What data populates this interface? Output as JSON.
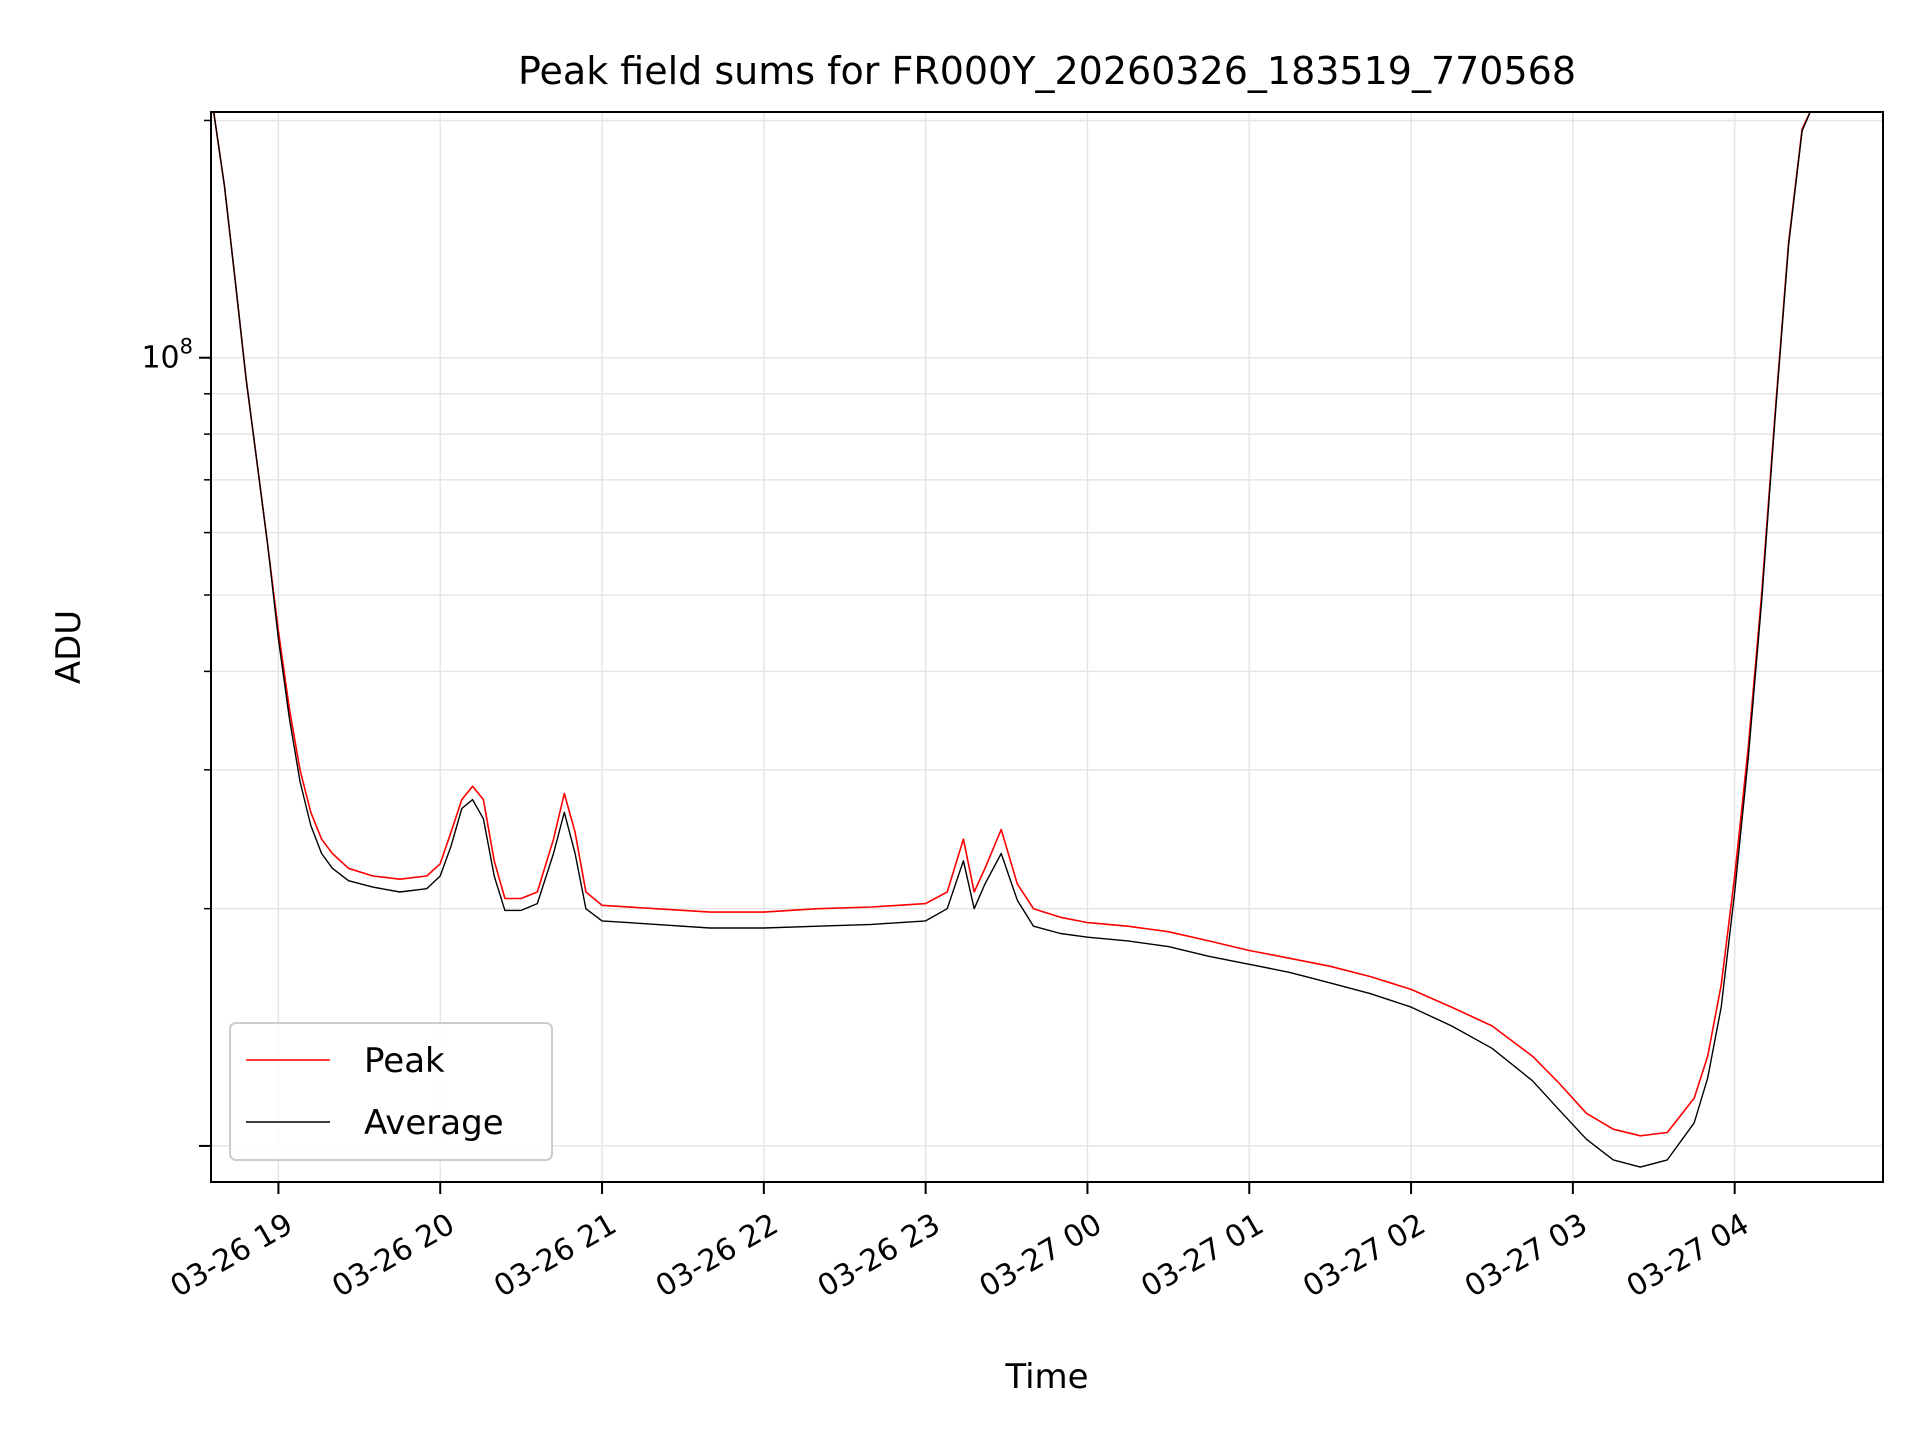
{
  "chart_data": {
    "type": "line",
    "title": "Peak field sums for FR000Y_20260326_183519_770568",
    "xlabel": "Time",
    "ylabel": "ADU",
    "yscale": "log",
    "ylim": [
      9000000,
      205000000
    ],
    "xlim_minutes_from_axis_start": [
      0,
      620
    ],
    "grid": true,
    "legend_position": "lower-left",
    "x_ticks": [
      "03-26 19",
      "03-26 20",
      "03-26 21",
      "03-26 22",
      "03-26 23",
      "03-27 00",
      "03-27 01",
      "03-27 02",
      "03-27 03",
      "03-27 04"
    ],
    "y_ticks": [
      {
        "base": "10",
        "exp": "8",
        "value": 100000000
      }
    ],
    "series": [
      {
        "name": "Peak",
        "color": "#ff0000",
        "points": [
          [
            "18:36",
            205000000
          ],
          [
            "18:40",
            165000000
          ],
          [
            "18:44",
            125000000
          ],
          [
            "18:48",
            94000000
          ],
          [
            "18:52",
            74000000
          ],
          [
            "18:56",
            58000000
          ],
          [
            "19:00",
            45000000
          ],
          [
            "19:04",
            36000000
          ],
          [
            "19:08",
            30000000
          ],
          [
            "19:12",
            26500000
          ],
          [
            "19:16",
            24500000
          ],
          [
            "19:20",
            23500000
          ],
          [
            "19:26",
            22500000
          ],
          [
            "19:35",
            22000000
          ],
          [
            "19:45",
            21800000
          ],
          [
            "19:55",
            22000000
          ],
          [
            "20:00",
            22800000
          ],
          [
            "20:04",
            25000000
          ],
          [
            "20:08",
            27500000
          ],
          [
            "20:12",
            28600000
          ],
          [
            "20:16",
            27500000
          ],
          [
            "20:20",
            23000000
          ],
          [
            "20:24",
            20600000
          ],
          [
            "20:30",
            20600000
          ],
          [
            "20:36",
            21000000
          ],
          [
            "20:42",
            24500000
          ],
          [
            "20:46",
            28000000
          ],
          [
            "20:50",
            25000000
          ],
          [
            "20:54",
            21000000
          ],
          [
            "21:00",
            20200000
          ],
          [
            "21:20",
            20000000
          ],
          [
            "21:40",
            19800000
          ],
          [
            "22:00",
            19800000
          ],
          [
            "22:20",
            20000000
          ],
          [
            "22:40",
            20100000
          ],
          [
            "23:00",
            20300000
          ],
          [
            "23:08",
            21000000
          ],
          [
            "23:14",
            24500000
          ],
          [
            "23:18",
            21000000
          ],
          [
            "23:22",
            22500000
          ],
          [
            "23:28",
            25200000
          ],
          [
            "23:34",
            21500000
          ],
          [
            "23:40",
            20000000
          ],
          [
            "23:50",
            19500000
          ],
          [
            "00:00",
            19200000
          ],
          [
            "00:15",
            19000000
          ],
          [
            "00:30",
            18700000
          ],
          [
            "00:45",
            18200000
          ],
          [
            "01:00",
            17700000
          ],
          [
            "01:15",
            17300000
          ],
          [
            "01:30",
            16900000
          ],
          [
            "01:45",
            16400000
          ],
          [
            "02:00",
            15800000
          ],
          [
            "02:15",
            15000000
          ],
          [
            "02:30",
            14200000
          ],
          [
            "02:45",
            13000000
          ],
          [
            "02:55",
            12000000
          ],
          [
            "03:05",
            11000000
          ],
          [
            "03:15",
            10500000
          ],
          [
            "03:25",
            10300000
          ],
          [
            "03:35",
            10400000
          ],
          [
            "03:45",
            11500000
          ],
          [
            "03:50",
            13000000
          ],
          [
            "03:55",
            16000000
          ],
          [
            "04:00",
            22000000
          ],
          [
            "04:05",
            32000000
          ],
          [
            "04:10",
            50000000
          ],
          [
            "04:15",
            85000000
          ],
          [
            "04:20",
            140000000
          ],
          [
            "04:25",
            195000000
          ],
          [
            "04:28",
            205000000
          ],
          [
            "04:43",
            205000000
          ]
        ]
      },
      {
        "name": "Average",
        "color": "#000000",
        "points": [
          [
            "18:36",
            205000000
          ],
          [
            "18:40",
            165000000
          ],
          [
            "18:44",
            125000000
          ],
          [
            "18:48",
            94000000
          ],
          [
            "18:52",
            74000000
          ],
          [
            "18:56",
            58000000
          ],
          [
            "19:00",
            44000000
          ],
          [
            "19:04",
            35000000
          ],
          [
            "19:08",
            29000000
          ],
          [
            "19:12",
            25500000
          ],
          [
            "19:16",
            23500000
          ],
          [
            "19:20",
            22500000
          ],
          [
            "19:26",
            21700000
          ],
          [
            "19:35",
            21300000
          ],
          [
            "19:45",
            21000000
          ],
          [
            "19:55",
            21200000
          ],
          [
            "20:00",
            22000000
          ],
          [
            "20:04",
            24000000
          ],
          [
            "20:08",
            26800000
          ],
          [
            "20:12",
            27500000
          ],
          [
            "20:16",
            26000000
          ],
          [
            "20:20",
            22000000
          ],
          [
            "20:24",
            19900000
          ],
          [
            "20:30",
            19900000
          ],
          [
            "20:36",
            20300000
          ],
          [
            "20:42",
            23500000
          ],
          [
            "20:46",
            26500000
          ],
          [
            "20:50",
            23500000
          ],
          [
            "20:54",
            20000000
          ],
          [
            "21:00",
            19300000
          ],
          [
            "21:20",
            19100000
          ],
          [
            "21:40",
            18900000
          ],
          [
            "22:00",
            18900000
          ],
          [
            "22:20",
            19000000
          ],
          [
            "22:40",
            19100000
          ],
          [
            "23:00",
            19300000
          ],
          [
            "23:08",
            20000000
          ],
          [
            "23:14",
            23000000
          ],
          [
            "23:18",
            20000000
          ],
          [
            "23:22",
            21500000
          ],
          [
            "23:28",
            23500000
          ],
          [
            "23:34",
            20500000
          ],
          [
            "23:40",
            19000000
          ],
          [
            "23:50",
            18600000
          ],
          [
            "00:00",
            18400000
          ],
          [
            "00:15",
            18200000
          ],
          [
            "00:30",
            17900000
          ],
          [
            "00:45",
            17400000
          ],
          [
            "01:00",
            17000000
          ],
          [
            "01:15",
            16600000
          ],
          [
            "01:30",
            16100000
          ],
          [
            "01:45",
            15600000
          ],
          [
            "02:00",
            15000000
          ],
          [
            "02:15",
            14200000
          ],
          [
            "02:30",
            13300000
          ],
          [
            "02:45",
            12100000
          ],
          [
            "02:55",
            11100000
          ],
          [
            "03:05",
            10200000
          ],
          [
            "03:15",
            9600000
          ],
          [
            "03:25",
            9400000
          ],
          [
            "03:35",
            9600000
          ],
          [
            "03:45",
            10700000
          ],
          [
            "03:50",
            12200000
          ],
          [
            "03:55",
            15000000
          ],
          [
            "04:00",
            21000000
          ],
          [
            "04:05",
            31000000
          ],
          [
            "04:10",
            49000000
          ],
          [
            "04:15",
            84000000
          ],
          [
            "04:20",
            139000000
          ],
          [
            "04:25",
            194000000
          ],
          [
            "04:28",
            205000000
          ],
          [
            "04:43",
            205000000
          ]
        ]
      }
    ]
  }
}
